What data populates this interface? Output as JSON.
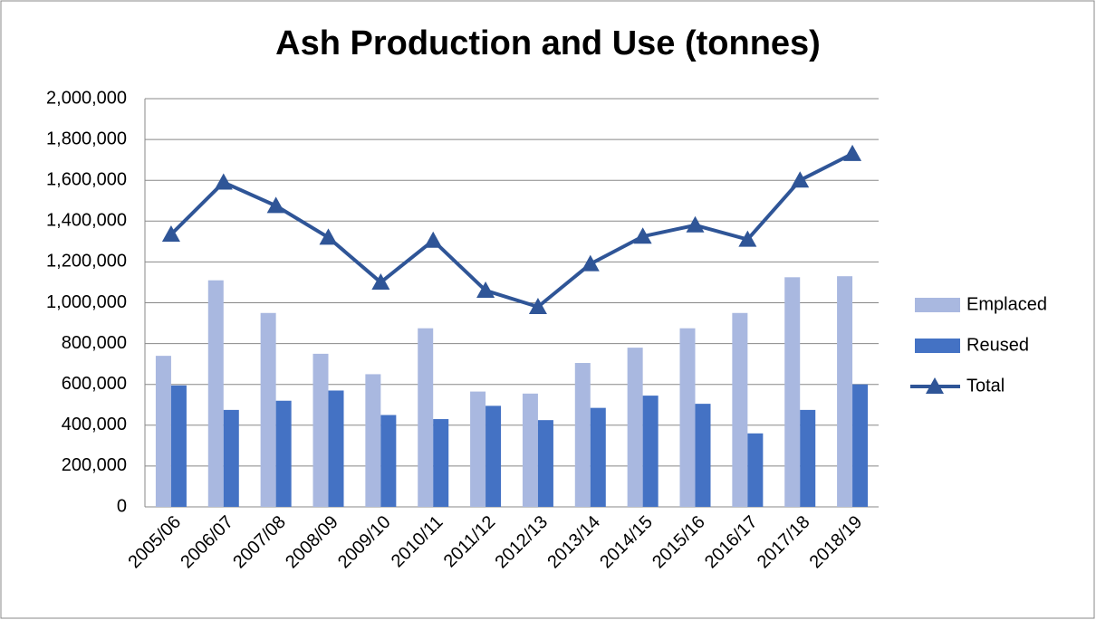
{
  "chart_data": {
    "type": "bar_line",
    "title": "Ash Production and Use (tonnes)",
    "categories": [
      "2005/06",
      "2006/07",
      "2007/08",
      "2008/09",
      "2009/10",
      "2010/11",
      "2011/12",
      "2012/13",
      "2013/14",
      "2014/15",
      "2015/16",
      "2016/17",
      "2017/18",
      "2018/19"
    ],
    "series": [
      {
        "name": "Emplaced",
        "type": "bar",
        "color": "#a9b8e0",
        "values": [
          740000,
          1110000,
          950000,
          750000,
          650000,
          875000,
          565000,
          555000,
          705000,
          780000,
          875000,
          950000,
          1125000,
          1130000
        ]
      },
      {
        "name": "Reused",
        "type": "bar",
        "color": "#4472c4",
        "values": [
          595000,
          475000,
          520000,
          570000,
          450000,
          430000,
          495000,
          425000,
          485000,
          545000,
          505000,
          360000,
          475000,
          600000
        ]
      },
      {
        "name": "Total",
        "type": "line",
        "color": "#2f5597",
        "values": [
          1335000,
          1590000,
          1475000,
          1320000,
          1100000,
          1305000,
          1060000,
          980000,
          1190000,
          1325000,
          1380000,
          1310000,
          1600000,
          1730000
        ]
      }
    ],
    "ylim": [
      0,
      2000000
    ],
    "yticks": [
      0,
      {
        "value": 200000,
        "label": "200,000"
      },
      {
        "value": 400000,
        "label": "400,000"
      },
      {
        "value": 600000,
        "label": "600,000"
      },
      {
        "value": 800000,
        "label": "800,000"
      },
      {
        "value": 1000000,
        "label": "1,000,000"
      },
      {
        "value": 1200000,
        "label": "1,200,000"
      },
      {
        "value": 1400000,
        "label": "1,400,000"
      },
      {
        "value": 1600000,
        "label": "1,600,000"
      },
      {
        "value": 1800000,
        "label": "1,800,000"
      },
      {
        "value": 2000000,
        "label": "2,000,000"
      }
    ],
    "grid": true,
    "legend": "right"
  }
}
